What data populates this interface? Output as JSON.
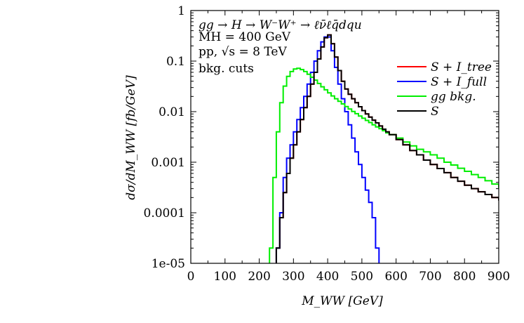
{
  "chart_data": {
    "type": "line",
    "x": [
      230,
      240,
      250,
      260,
      270,
      280,
      290,
      300,
      310,
      320,
      330,
      340,
      350,
      360,
      370,
      380,
      390,
      400,
      410,
      420,
      430,
      440,
      450,
      460,
      470,
      480,
      490,
      500,
      510,
      520,
      530,
      540,
      550,
      560,
      570,
      580,
      600,
      620,
      640,
      660,
      680,
      700,
      720,
      740,
      760,
      780,
      800,
      820,
      840,
      860,
      880,
      900
    ],
    "xlim": [
      0,
      900
    ],
    "ylim": [
      1e-05,
      1
    ],
    "yscale": "log",
    "xticks": [
      "0",
      "100",
      "200",
      "300",
      "400",
      "500",
      "600",
      "700",
      "800",
      "900"
    ],
    "yticks": [
      "1e-05",
      "0.0001",
      "0.001",
      "0.01",
      "0.1",
      "1"
    ],
    "xlabel": "M_WW [GeV]",
    "ylabel": "dσ/dM_WW [fb/GeV]",
    "annotations": [
      "gg → H → W⁻W⁺ → ℓν̄ℓq̄dqu",
      "MH = 400 GeV",
      "pp, √s = 8 TeV",
      "bkg. cuts"
    ],
    "legend_position": "top-right",
    "series": [
      {
        "name": "S + I_tree",
        "color": "#ff0000",
        "values": [
          null,
          null,
          2e-05,
          8e-05,
          0.00025,
          0.0006,
          0.0012,
          0.0022,
          0.004,
          0.007,
          0.012,
          0.02,
          0.035,
          0.06,
          0.11,
          0.19,
          0.29,
          0.33,
          0.22,
          0.12,
          0.065,
          0.04,
          0.028,
          0.022,
          0.018,
          0.015,
          0.0125,
          0.0105,
          0.009,
          0.0078,
          0.0068,
          0.006,
          0.0052,
          0.0045,
          0.004,
          0.0035,
          0.0028,
          0.0022,
          0.0017,
          0.0014,
          0.0011,
          0.0009,
          0.00075,
          0.00062,
          0.0005,
          0.00042,
          0.00035,
          0.0003,
          0.00026,
          0.00023,
          0.0002,
          0.00018
        ]
      },
      {
        "name": "S + I_full",
        "color": "#0000ff",
        "values": [
          null,
          null,
          2e-05,
          0.0001,
          0.0005,
          0.0012,
          0.0022,
          0.004,
          0.007,
          0.012,
          0.02,
          0.035,
          0.06,
          0.1,
          0.16,
          0.24,
          0.3,
          0.3,
          0.16,
          0.075,
          0.035,
          0.018,
          0.01,
          0.0055,
          0.003,
          0.0016,
          0.0009,
          0.0005,
          0.00028,
          0.00016,
          8e-05,
          2e-05,
          null,
          null,
          null,
          null,
          null,
          null,
          null,
          null,
          null,
          null,
          null,
          null,
          null,
          null,
          null,
          null,
          null,
          null,
          null,
          null
        ]
      },
      {
        "name": "gg bkg.",
        "color": "#00ee00",
        "values": [
          2e-05,
          0.0005,
          0.004,
          0.015,
          0.032,
          0.05,
          0.062,
          0.07,
          0.072,
          0.068,
          0.062,
          0.055,
          0.048,
          0.042,
          0.036,
          0.031,
          0.027,
          0.0235,
          0.0205,
          0.018,
          0.016,
          0.0142,
          0.0126,
          0.0113,
          0.0101,
          0.0091,
          0.0082,
          0.0074,
          0.0067,
          0.0061,
          0.0055,
          0.005,
          0.0046,
          0.0042,
          0.0038,
          0.0035,
          0.003,
          0.0025,
          0.0021,
          0.0018,
          0.0016,
          0.0014,
          0.0012,
          0.001,
          0.00088,
          0.00076,
          0.00066,
          0.00057,
          0.0005,
          0.00043,
          0.00037,
          0.00032
        ]
      },
      {
        "name": "S",
        "color": "#000000",
        "values": [
          null,
          null,
          2e-05,
          8e-05,
          0.00025,
          0.0006,
          0.0012,
          0.0022,
          0.004,
          0.007,
          0.012,
          0.02,
          0.035,
          0.06,
          0.11,
          0.19,
          0.29,
          0.33,
          0.22,
          0.12,
          0.065,
          0.04,
          0.028,
          0.022,
          0.018,
          0.015,
          0.0125,
          0.0105,
          0.009,
          0.0078,
          0.0068,
          0.006,
          0.0052,
          0.0045,
          0.004,
          0.0035,
          0.0028,
          0.0022,
          0.0017,
          0.0014,
          0.0011,
          0.0009,
          0.00075,
          0.00062,
          0.0005,
          0.00042,
          0.00035,
          0.0003,
          0.00026,
          0.00023,
          0.0002,
          0.00018
        ]
      }
    ]
  }
}
